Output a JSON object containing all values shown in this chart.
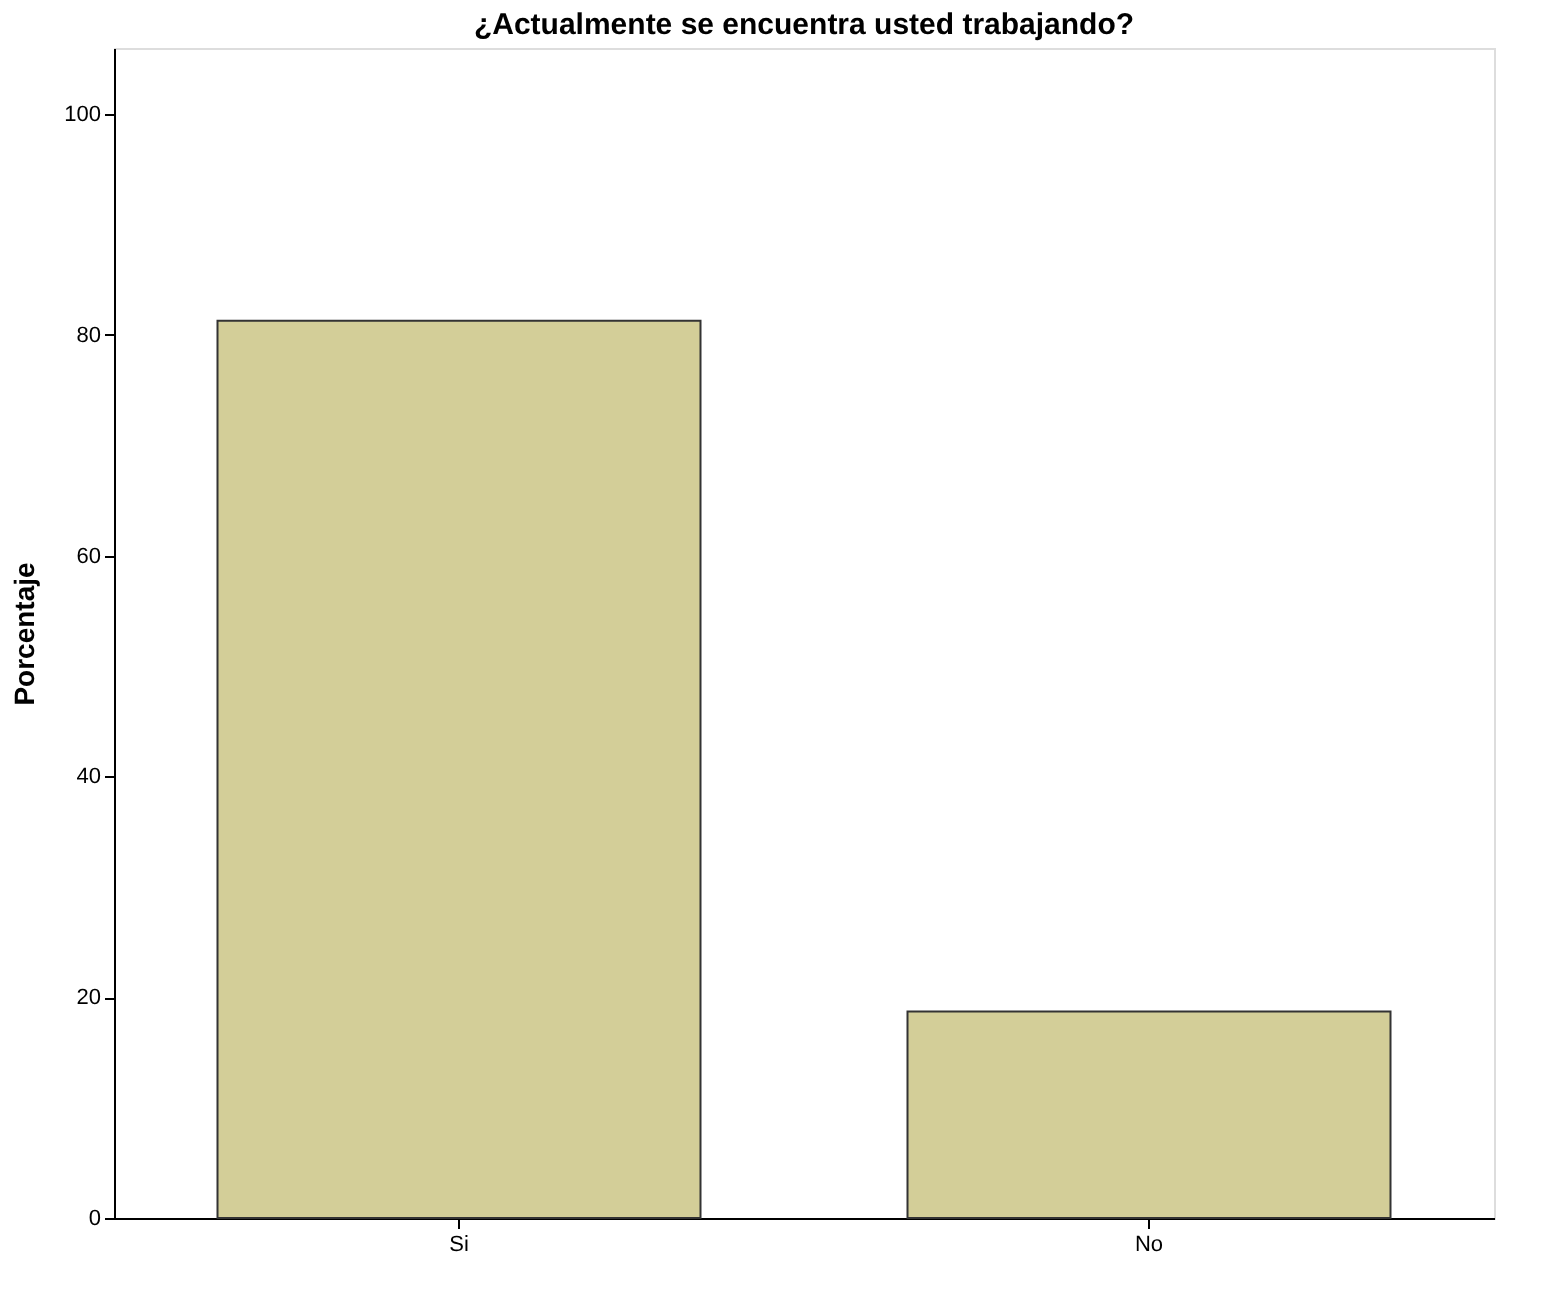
{
  "chart_data": {
    "type": "bar",
    "title": "¿Actualmente se encuentra usted trabajando?",
    "ylabel": "Porcentaje",
    "categories": [
      "Si",
      "No"
    ],
    "values": [
      81.3,
      18.7
    ],
    "color": "#d3ce98",
    "ylim": [
      0,
      106
    ],
    "yticks": [
      0,
      20,
      40,
      60,
      80,
      100
    ],
    "grid": false
  }
}
